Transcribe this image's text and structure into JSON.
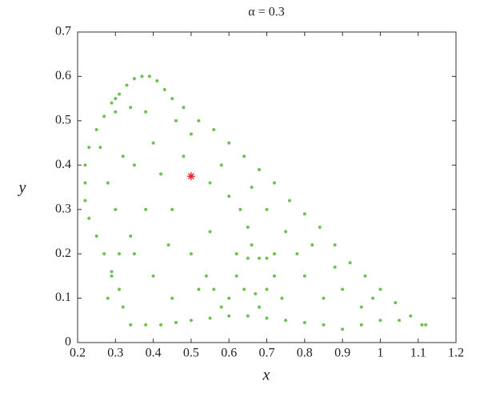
{
  "chart_data": {
    "type": "scatter",
    "title": "α = 0.3",
    "x_label": "x",
    "y_label": "y",
    "xlim": [
      0.2,
      1.2
    ],
    "ylim": [
      0,
      0.7
    ],
    "xticks": [
      0.2,
      0.3,
      0.4,
      0.5,
      0.6,
      0.7,
      0.8,
      0.9,
      1,
      1.1,
      1.2
    ],
    "yticks": [
      0,
      0.1,
      0.2,
      0.3,
      0.4,
      0.5,
      0.6,
      0.7
    ],
    "series": [
      {
        "color": "#6cc24a",
        "marker": "dot",
        "x": [
          0.34,
          0.32,
          0.31,
          0.29,
          0.27,
          0.25,
          0.23,
          0.22,
          0.22,
          0.22,
          0.23,
          0.25,
          0.27,
          0.29,
          0.31,
          0.33,
          0.35,
          0.37,
          0.39,
          0.41,
          0.43,
          0.45,
          0.48,
          0.52,
          0.56,
          0.6,
          0.64,
          0.68,
          0.72,
          0.76,
          0.8,
          0.84,
          0.88,
          0.92,
          0.96,
          1.0,
          1.04,
          1.08,
          1.11,
          1.12,
          0.38,
          0.42,
          0.46,
          0.5,
          0.55,
          0.6,
          0.65,
          0.7,
          0.75,
          0.8,
          0.85,
          0.9,
          0.95,
          1.0,
          1.05,
          0.3,
          0.34,
          0.38,
          0.3,
          0.55,
          0.6,
          0.63,
          0.65,
          0.66,
          0.68,
          0.7,
          0.72,
          0.62,
          0.65,
          0.62,
          0.64,
          0.67,
          0.7,
          0.72,
          0.28,
          0.29,
          0.31,
          0.34,
          0.54,
          0.56,
          0.58,
          0.3,
          0.35,
          0.4,
          0.45,
          0.5,
          0.55,
          0.6,
          0.7,
          0.75,
          0.8,
          0.85,
          0.9,
          0.95,
          0.4,
          0.45,
          0.35,
          0.38,
          0.42,
          0.48,
          0.28,
          0.26,
          0.32,
          0.44,
          0.52,
          0.78,
          0.82,
          0.88,
          0.98,
          0.58,
          0.66,
          0.5,
          0.46,
          0.74,
          0.68
        ],
        "values": [
          0.04,
          0.08,
          0.12,
          0.16,
          0.2,
          0.24,
          0.28,
          0.32,
          0.36,
          0.4,
          0.44,
          0.48,
          0.51,
          0.54,
          0.56,
          0.58,
          0.595,
          0.6,
          0.6,
          0.59,
          0.57,
          0.55,
          0.53,
          0.5,
          0.48,
          0.45,
          0.42,
          0.39,
          0.36,
          0.32,
          0.29,
          0.26,
          0.22,
          0.18,
          0.15,
          0.12,
          0.09,
          0.06,
          0.04,
          0.04,
          0.04,
          0.04,
          0.045,
          0.05,
          0.055,
          0.06,
          0.06,
          0.055,
          0.05,
          0.045,
          0.04,
          0.03,
          0.04,
          0.05,
          0.05,
          0.52,
          0.53,
          0.52,
          0.55,
          0.36,
          0.33,
          0.3,
          0.26,
          0.22,
          0.19,
          0.19,
          0.2,
          0.2,
          0.19,
          0.15,
          0.12,
          0.11,
          0.12,
          0.15,
          0.1,
          0.15,
          0.2,
          0.24,
          0.15,
          0.12,
          0.08,
          0.3,
          0.4,
          0.45,
          0.3,
          0.2,
          0.25,
          0.1,
          0.3,
          0.25,
          0.15,
          0.1,
          0.12,
          0.08,
          0.15,
          0.1,
          0.2,
          0.3,
          0.38,
          0.42,
          0.36,
          0.44,
          0.42,
          0.22,
          0.12,
          0.2,
          0.22,
          0.17,
          0.1,
          0.4,
          0.35,
          0.47,
          0.5,
          0.1,
          0.08
        ]
      },
      {
        "color": "#e8262a",
        "marker": "star",
        "x": [
          0.5
        ],
        "values": [
          0.375
        ]
      }
    ]
  }
}
